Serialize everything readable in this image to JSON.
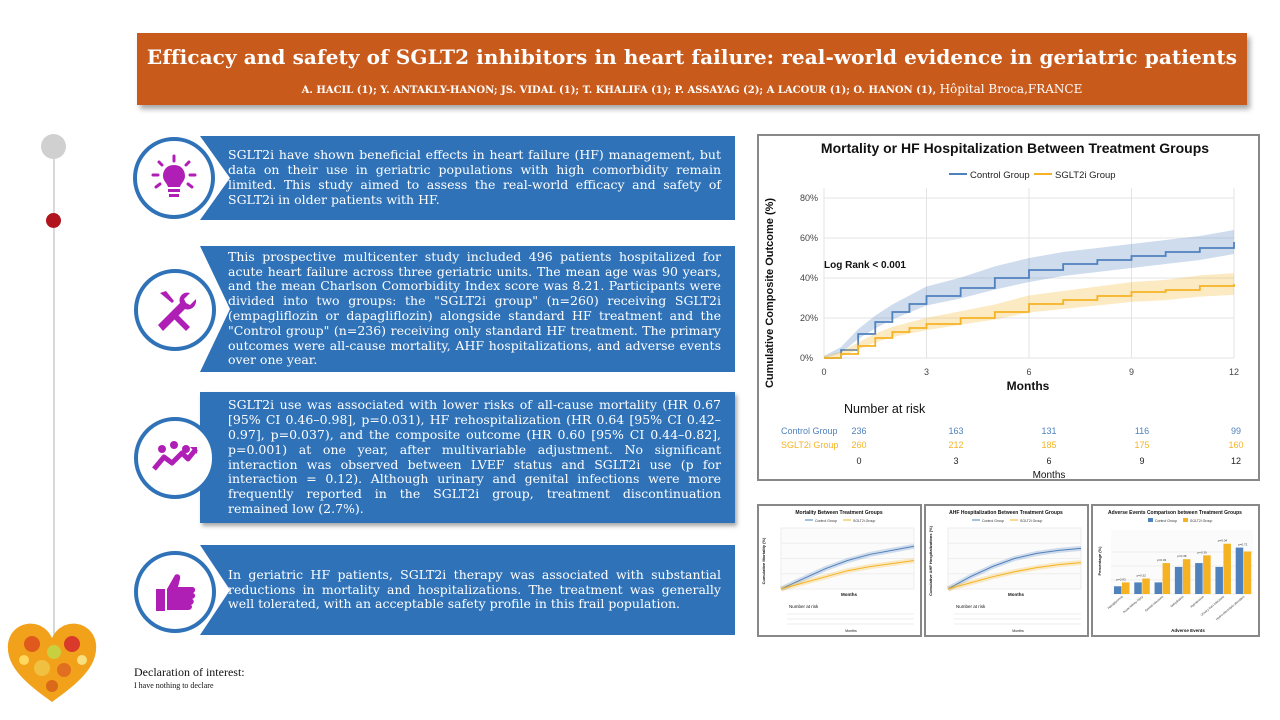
{
  "header": {
    "title": "Efficacy and safety of SGLT2 inhibitors in heart failure: real-world evidence in geriatric patients",
    "authors": "A. HACIL (1); Y. ANTAKLY-HANON; JS. VIDAL (1); T. KHALIFA (1); P. ASSAYAG (2); A LACOUR (1); O. HANON (1),",
    "institution": "Hôpital Broca,FRANCE"
  },
  "sections": [
    {
      "icon": "lightbulb-icon",
      "text": "SGLT2i have shown beneficial effects in heart failure (HF) management, but data on their use in geriatric populations with high comorbidity remain limited. This study aimed to assess the real-world efficacy and safety of SGLT2i in older patients with HF."
    },
    {
      "icon": "tools-icon",
      "text": "This prospective multicenter study included 496 patients hospitalized for acute heart failure across three geriatric units. The mean age was 90 years, and the mean Charlson Comorbidity Index score was 8.21. Participants were divided into two groups: the \"SGLT2i group\" (n=260) receiving SGLT2i (empagliflozin or dapagliflozin) alongside standard HF treatment and the \"Control group\" (n=236) receiving only standard HF treatment. The primary outcomes were all-cause mortality, AHF hospitalizations, and adverse events over one year."
    },
    {
      "icon": "growth-chart-icon",
      "text": "SGLT2i use was associated with lower risks of all-cause mortality (HR 0.67 [95% CI 0.46–0.98], p=0.031), HF rehospitalization (HR 0.64 [95% CI 0.42–0.97], p=0.037), and the composite outcome (HR 0.60 [95% CI 0.44–0.82], p=0.001) at one year, after multivariable adjustment. No significant interaction was observed between LVEF status and SGLT2i use (p for interaction = 0.12). Although urinary and genital infections were more frequently reported in the SGLT2i group, treatment discontinuation remained low (2.7%)."
    },
    {
      "icon": "thumbs-up-icon",
      "text": "In geriatric HF patients, SGLT2i therapy was associated with substantial reductions in mortality and hospitalizations. The treatment was generally well tolerated, with an acceptable safety profile in this frail population."
    }
  ],
  "declaration": {
    "title": "Declaration of interest:",
    "text": "I have nothing to declare"
  },
  "colors": {
    "banner": "#c85a1c",
    "box": "#2f72b8",
    "control": "#4f81bd",
    "sglt2i": "#f5b324",
    "icon": "#b01fb5"
  },
  "chart_data": [
    {
      "type": "line",
      "title": "Mortality or HF Hospitalization Between Treatment Groups",
      "xlabel": "Months",
      "ylabel": "Cumulative Composite Outcome (%)",
      "annotation": "Log Rank < 0.001",
      "xlim": [
        0,
        12
      ],
      "ylim": [
        0,
        85
      ],
      "x_ticks": [
        0,
        3,
        6,
        9,
        12
      ],
      "y_ticks": [
        0,
        20,
        40,
        60,
        80
      ],
      "y_tick_labels": [
        "0%",
        "20%",
        "40%",
        "60%",
        "80%"
      ],
      "legend": "top",
      "grid": true,
      "series": [
        {
          "name": "Control Group",
          "x": [
            0,
            0.5,
            1,
            1.5,
            2,
            2.5,
            3,
            4,
            5,
            6,
            7,
            8,
            9,
            10,
            11,
            12
          ],
          "y": [
            0,
            4,
            12,
            18,
            23,
            27,
            31,
            35,
            40,
            44,
            47,
            49,
            51,
            53,
            55,
            58
          ]
        },
        {
          "name": "SGLT2i Group",
          "x": [
            0,
            0.5,
            1,
            1.5,
            2,
            2.5,
            3,
            4,
            5,
            6,
            7,
            8,
            9,
            10,
            11,
            12
          ],
          "y": [
            0,
            2,
            6,
            10,
            13,
            15,
            17,
            20,
            23,
            27,
            29,
            31,
            33,
            34,
            36,
            37
          ]
        }
      ],
      "risk_table": {
        "title": "Number at risk",
        "xlabel": "Months",
        "months": [
          0,
          3,
          6,
          9,
          12
        ],
        "rows": [
          {
            "name": "Control Group",
            "values": [
              236,
              163,
              131,
              116,
              99
            ]
          },
          {
            "name": "SGLT2i Group",
            "values": [
              260,
              212,
              185,
              175,
              160
            ]
          }
        ]
      }
    },
    {
      "type": "line",
      "title": "Mortality Between Treatment Groups",
      "xlabel": "Months",
      "ylabel": "Cumulative Mortality (%)",
      "annotation": "Log Rank = 0.003",
      "legend": "top",
      "risk_table_title": "Number at risk",
      "series": [
        {
          "name": "Control Group",
          "values": [
            0,
            10,
            20,
            28,
            34,
            38,
            42
          ]
        },
        {
          "name": "SGLT2i Group",
          "values": [
            0,
            6,
            12,
            18,
            22,
            25,
            28
          ]
        }
      ]
    },
    {
      "type": "line",
      "title": "AHF Hospitalization Between Treatment Groups",
      "xlabel": "Months",
      "ylabel": "Cumulative AHF Hospitalizations (%)",
      "annotation": "Log Rank < 0.001",
      "legend": "top",
      "risk_table_title": "Number at risk",
      "series": [
        {
          "name": "Control Group",
          "values": [
            0,
            12,
            22,
            30,
            35,
            38,
            40
          ]
        },
        {
          "name": "SGLT2i Group",
          "values": [
            0,
            6,
            12,
            17,
            21,
            24,
            26
          ]
        }
      ]
    },
    {
      "type": "bar",
      "title": "Adverse Events Comparison between Treatment Groups",
      "xlabel": "Adverse Events",
      "ylabel": "Percentage (%)",
      "legend": "top",
      "categories": [
        "Hypoglycemia",
        "Acute kidney injury",
        "Genital infections",
        "Dehydration",
        "Hypotension",
        "Urinary tract infections",
        "Hydro-electrolytic disorders"
      ],
      "series": [
        {
          "name": "Control Group",
          "values": [
            2,
            3,
            3,
            7,
            8,
            7,
            12
          ]
        },
        {
          "name": "SGLT2i Group",
          "values": [
            3,
            4,
            8,
            9,
            10,
            13,
            11
          ]
        }
      ],
      "p_labels": [
        "p=0.83",
        "p=0.52",
        "p=0.03",
        "p=0.38",
        "p=0.39",
        "p=0.04",
        "p=0.72"
      ]
    }
  ]
}
